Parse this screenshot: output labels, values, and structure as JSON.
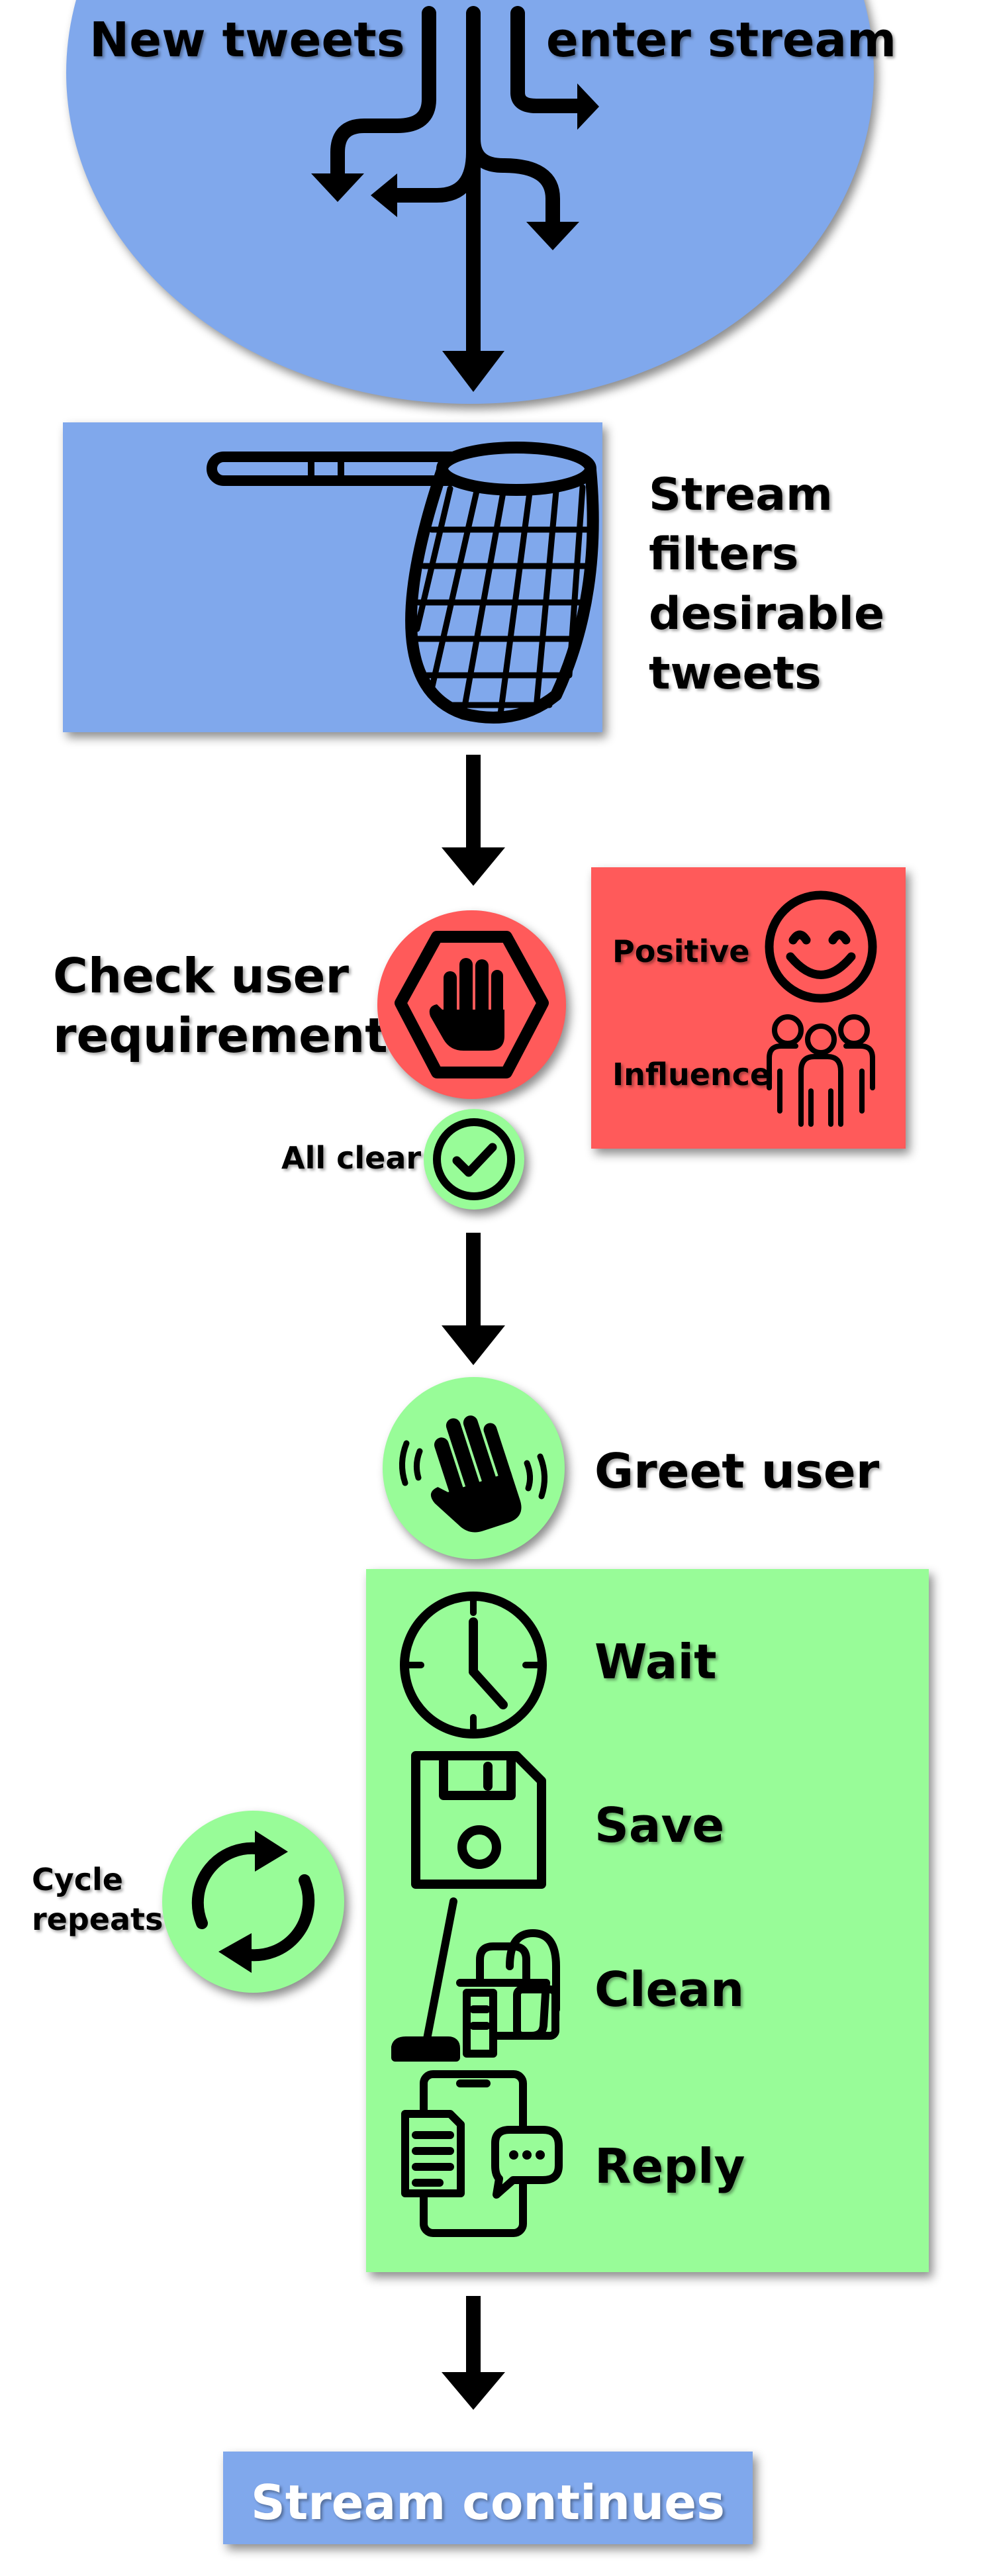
{
  "colors": {
    "blue": "#80a8ec",
    "red": "#ff5a5a",
    "green": "#98fc98",
    "ink": "#000000",
    "white": "#ffffff"
  },
  "top": {
    "left_label": "New tweets",
    "right_label": "enter stream"
  },
  "filter": {
    "label_lines": [
      "Stream",
      "filters",
      "desirable",
      "tweets"
    ]
  },
  "check": {
    "label_lines": [
      "Check user",
      "requirements"
    ],
    "requirements": [
      {
        "label": "Positive",
        "icon": "smiley-icon"
      },
      {
        "label": "Influence",
        "icon": "group-icon"
      }
    ],
    "all_clear": "All clear"
  },
  "greet": {
    "label": "Greet user"
  },
  "cycle": {
    "label_lines": [
      "Cycle",
      "repeats"
    ],
    "steps": [
      {
        "label": "Wait",
        "icon": "clock-icon"
      },
      {
        "label": "Save",
        "icon": "floppy-disk-icon"
      },
      {
        "label": "Clean",
        "icon": "cleaning-tools-icon"
      },
      {
        "label": "Reply",
        "icon": "phone-chat-icon"
      }
    ]
  },
  "end": {
    "label": "Stream continues"
  }
}
